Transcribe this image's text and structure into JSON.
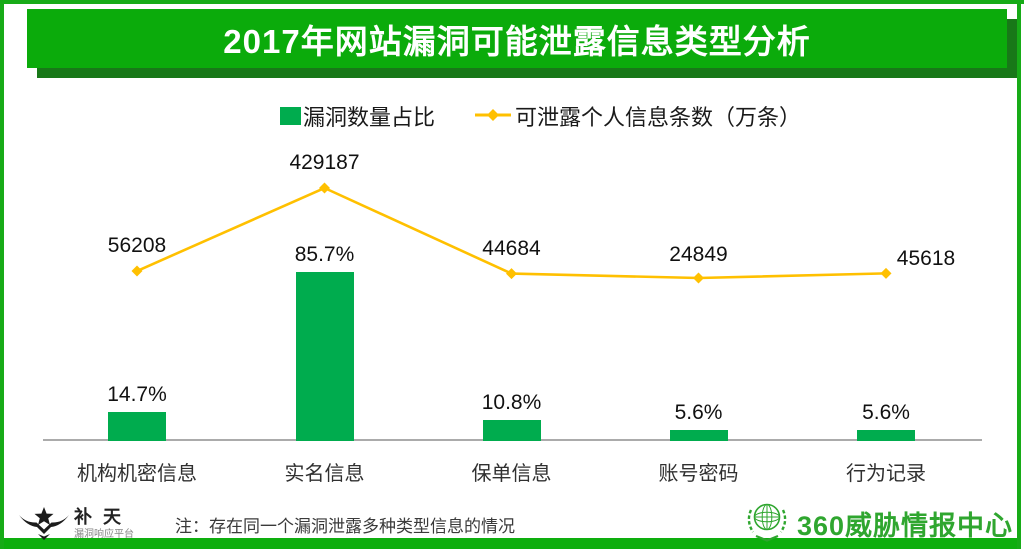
{
  "title": "2017年网站漏洞可能泄露信息类型分析",
  "legend": {
    "bars": "漏洞数量占比",
    "line": "可泄露个人信息条数（万条）"
  },
  "chart_data": {
    "type": "bar",
    "subtype": "bar+line combo",
    "categories": [
      "机构机密信息",
      "实名信息",
      "保单信息",
      "账号密码",
      "行为记录"
    ],
    "series": [
      {
        "name": "漏洞数量占比",
        "type": "bar",
        "unit": "%",
        "values": [
          14.7,
          85.7,
          10.8,
          5.6,
          5.6
        ],
        "labels": [
          "14.7%",
          "85.7%",
          "10.8%",
          "5.6%",
          "5.6%"
        ],
        "color": "#00AC4E"
      },
      {
        "name": "可泄露个人信息条数（万条）",
        "type": "line",
        "values": [
          56208,
          429187,
          44684,
          24849,
          45618
        ],
        "labels": [
          "56208",
          "429187",
          "44684",
          "24849",
          "45618"
        ],
        "color": "#FFC000"
      }
    ],
    "title": "2017年网站漏洞可能泄露信息类型分析",
    "xlabel": "",
    "ylabel": "",
    "grid": false,
    "legend_position": "top-center",
    "baseline_axis": true
  },
  "footer": {
    "note": "注：存在同一个漏洞泄露多种类型信息的情况",
    "butian_name": "补 天",
    "butian_subtitle": "漏洞响应平台",
    "brand_right": "360威胁情报中心"
  },
  "colors": {
    "banner_green": "#0BAB0B",
    "banner_shadow_green": "#187818",
    "frame_green": "#17AB17",
    "bottom_bar_green": "#0EAE0E",
    "bar_green": "#00AC4E",
    "line_gold": "#FFC000",
    "brand_green": "#2FA62F",
    "axis_gray": "#ABABAB"
  }
}
